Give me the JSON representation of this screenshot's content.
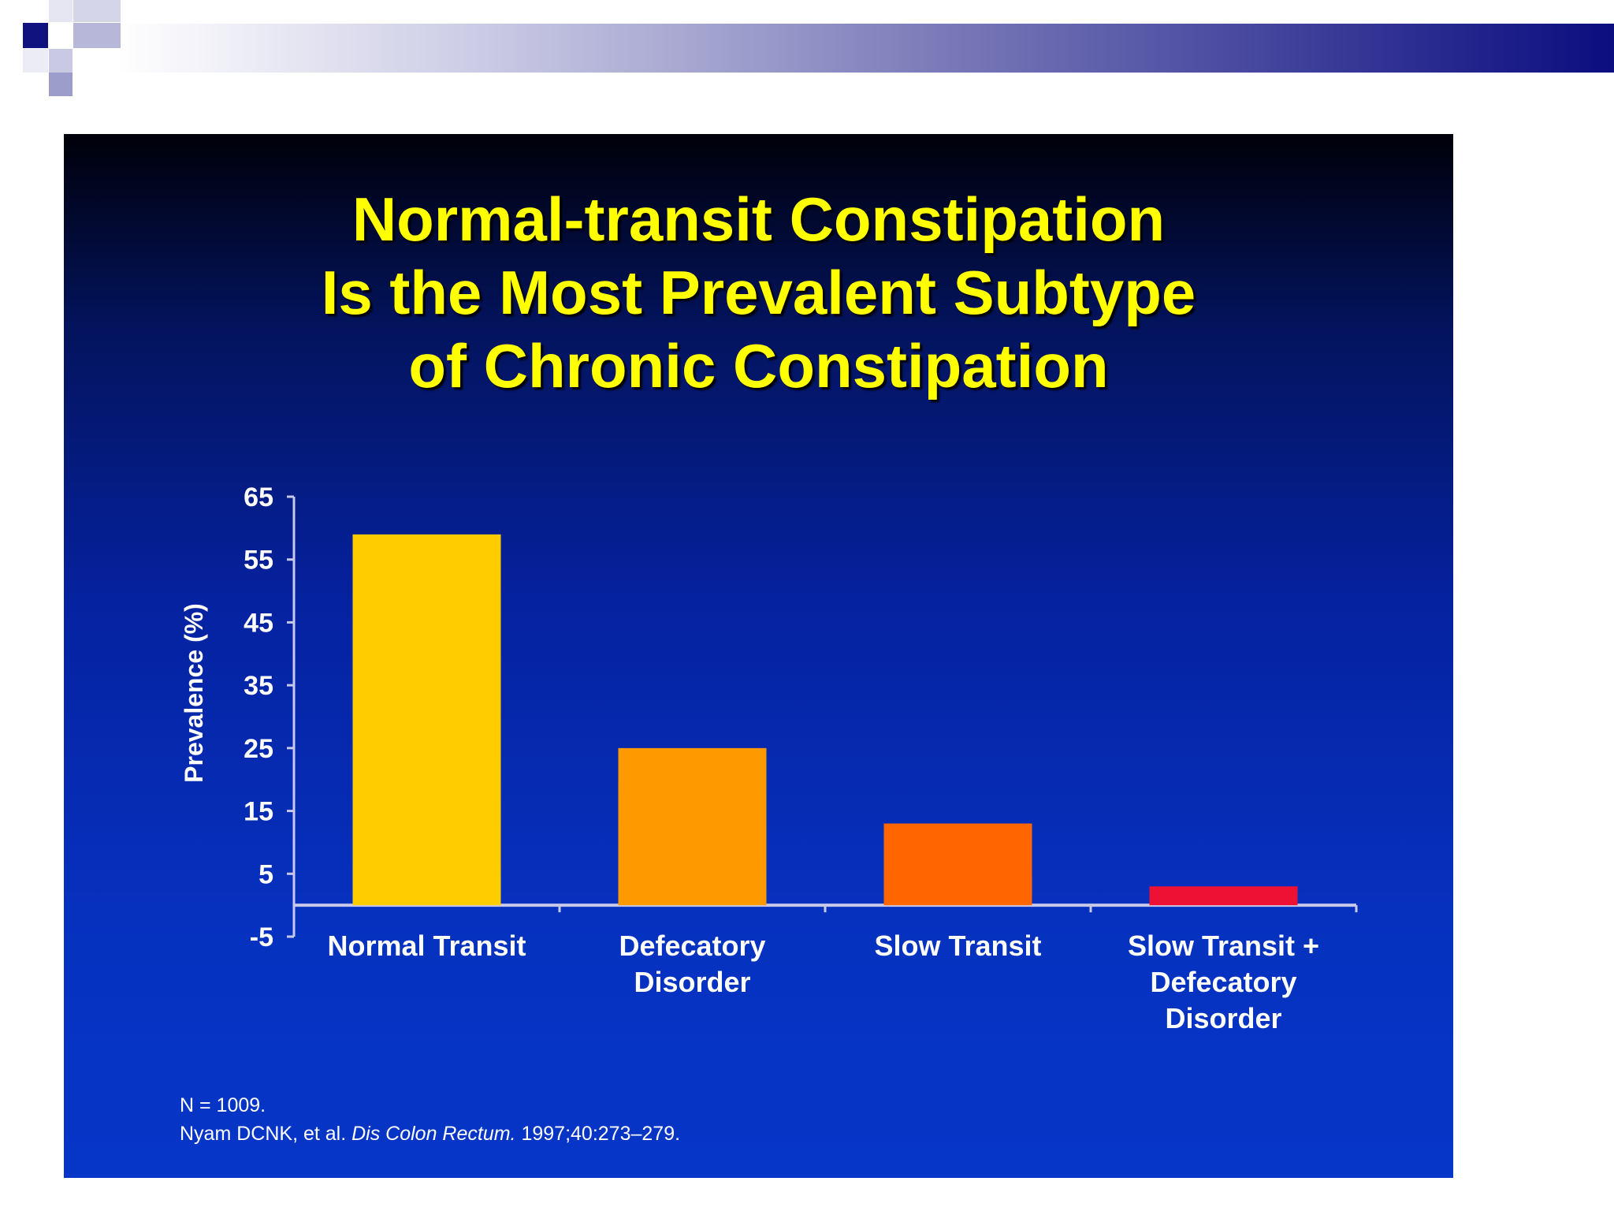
{
  "chart_data": {
    "type": "bar",
    "title": "Normal-transit Constipation Is the Most Prevalent Subtype of Chronic Constipation",
    "title_lines": [
      "Normal-transit Constipation",
      "Is the Most Prevalent Subtype",
      "of Chronic Constipation"
    ],
    "categories": [
      "Normal Transit",
      "Defecatory Disorder",
      "Slow Transit",
      "Slow Transit + Defecatory Disorder"
    ],
    "category_lines": [
      [
        "Normal Transit"
      ],
      [
        "Defecatory",
        "Disorder"
      ],
      [
        "Slow Transit"
      ],
      [
        "Slow Transit +",
        "Defecatory",
        "Disorder"
      ]
    ],
    "values": [
      59,
      25,
      13,
      3
    ],
    "bar_colors": [
      "#ffcc00",
      "#ff9900",
      "#ff6600",
      "#ee1133"
    ],
    "xlabel": "",
    "ylabel": "Prevalence (%)",
    "ylim": [
      -5,
      65
    ],
    "yticks": [
      65,
      55,
      45,
      35,
      25,
      15,
      5,
      -5
    ],
    "grid": false,
    "legend": "none"
  },
  "footnote": {
    "line1": "N = 1009.",
    "line2_authors": "Nyam DCNK, et al. ",
    "line2_journal": "Dis Colon Rectum.",
    "line2_citation": " 1997;40:273–279."
  },
  "colors": {
    "title": "#ffff00",
    "header_accent": "#0b0d80"
  }
}
